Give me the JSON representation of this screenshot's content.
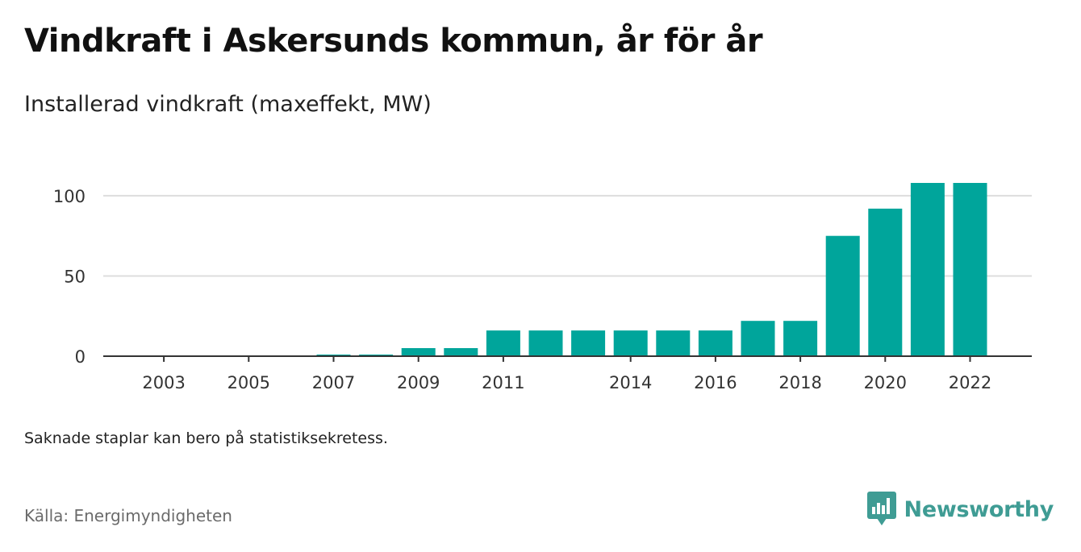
{
  "header": {
    "title": "Vindkraft i Askersunds kommun, år för år",
    "subtitle": "Installerad vindkraft (maxeffekt, MW)"
  },
  "footer": {
    "note": "Saknade staplar kan bero på statistiksekretess.",
    "source": "Källa: Energimyndigheten",
    "brand": "Newsworthy",
    "brand_icon": "newsworthy-chart-bubble-icon"
  },
  "colors": {
    "bar": "#00a59b",
    "grid": "#dddddd",
    "axis": "#333333",
    "brand": "#3f9c94"
  },
  "chart_data": {
    "type": "bar",
    "title": "Vindkraft i Askersunds kommun, år för år",
    "subtitle": "Installerad vindkraft (maxeffekt, MW)",
    "categories": [
      "2002",
      "2003",
      "2004",
      "2005",
      "2006",
      "2007",
      "2008",
      "2009",
      "2010",
      "2011",
      "2012",
      "2013",
      "2014",
      "2015",
      "2016",
      "2017",
      "2018",
      "2019",
      "2020",
      "2021",
      "2022"
    ],
    "values": [
      0,
      0,
      0,
      0,
      0,
      1,
      1,
      5,
      5,
      16,
      16,
      16,
      16,
      16,
      16,
      22,
      22,
      75,
      92,
      108,
      108
    ],
    "x_tick_labels": [
      "2003",
      "2005",
      "2007",
      "2009",
      "2011",
      "2014",
      "2016",
      "2018",
      "2020",
      "2022"
    ],
    "y_ticks": [
      0,
      50,
      100
    ],
    "ylim": [
      0,
      108
    ],
    "grid": true,
    "legend": "none"
  }
}
